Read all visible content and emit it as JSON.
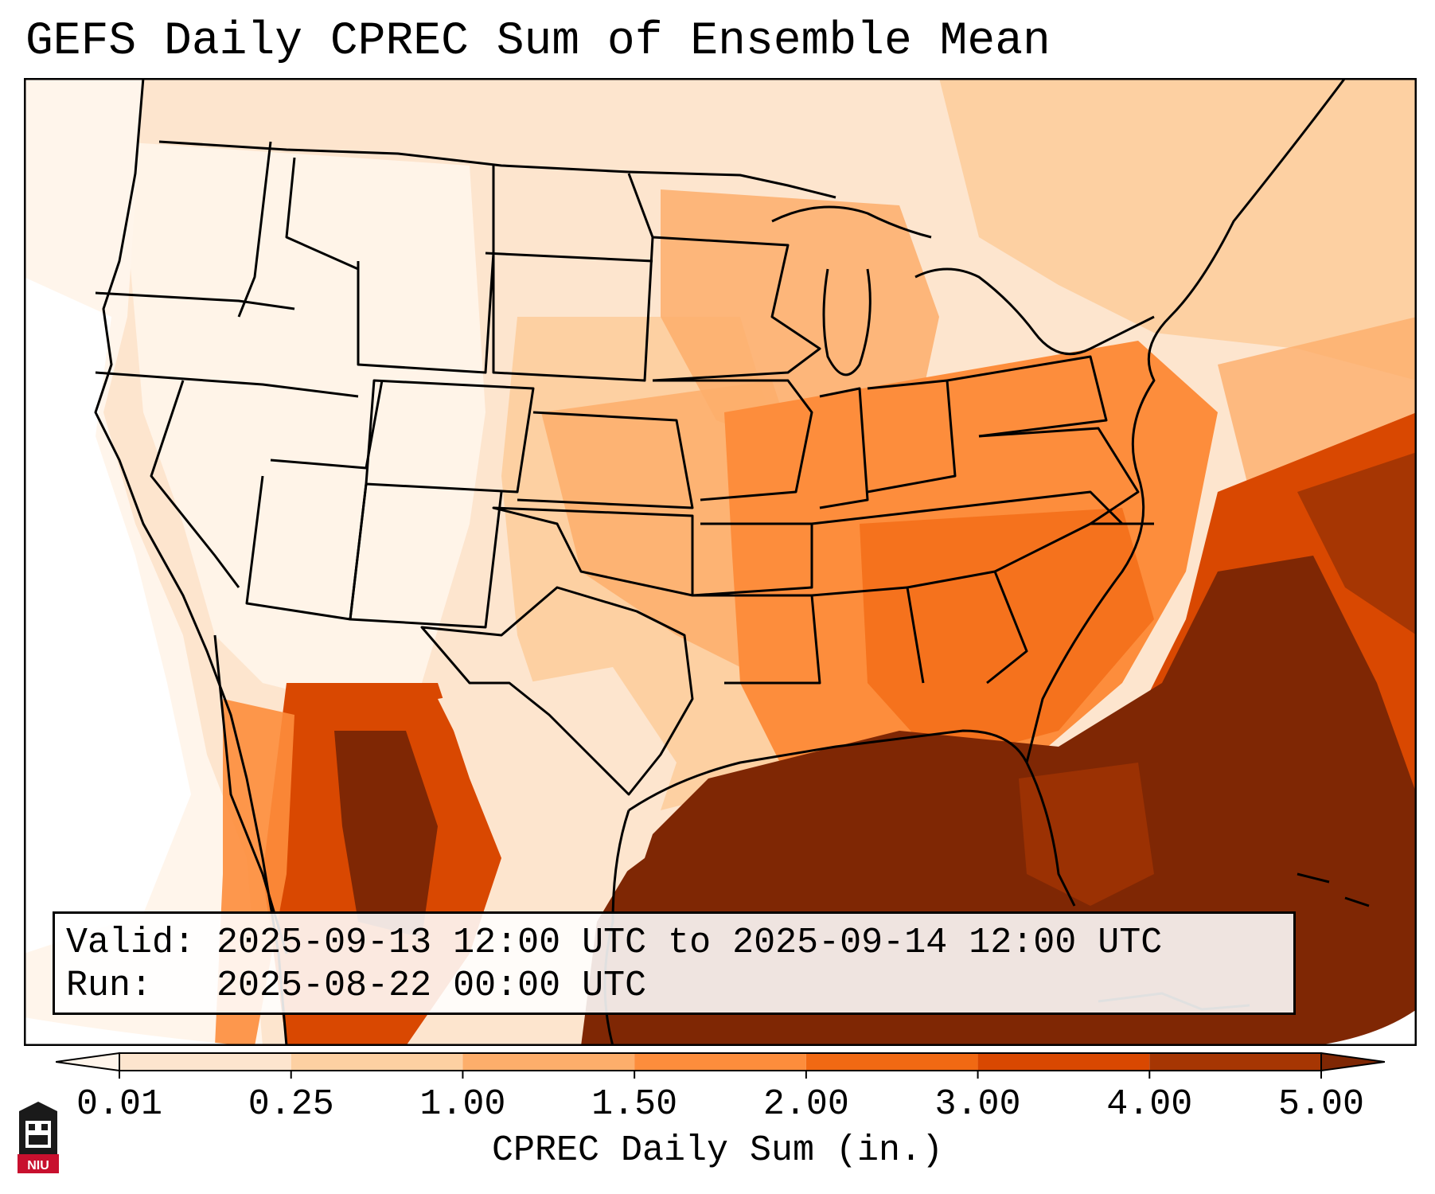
{
  "title": "GEFS Daily CPREC Sum of Ensemble Mean",
  "info": {
    "valid_label": "Valid:",
    "valid_value": "2025-09-13 12:00 UTC to 2025-09-14 12:00 UTC",
    "run_label": "Run:",
    "run_value": "2025-08-22 00:00 UTC"
  },
  "colorbar": {
    "title": "CPREC Daily Sum (in.)",
    "ticks": [
      "0.01",
      "0.25",
      "1.00",
      "1.50",
      "2.00",
      "3.00",
      "4.00",
      "5.00"
    ],
    "colors": [
      "#fff5eb",
      "#fde5ce",
      "#fdd0a2",
      "#fdae6b",
      "#fd8d3c",
      "#f16913",
      "#d94801",
      "#a63603",
      "#7f2704"
    ]
  },
  "logo": {
    "text": "NIU",
    "icon": "niu-logo-icon"
  },
  "map": {
    "projection": "lambert-conformal",
    "region": "CONUS",
    "layers": [
      "precipitation-field",
      "coastlines",
      "state-borders",
      "country-borders"
    ]
  }
}
